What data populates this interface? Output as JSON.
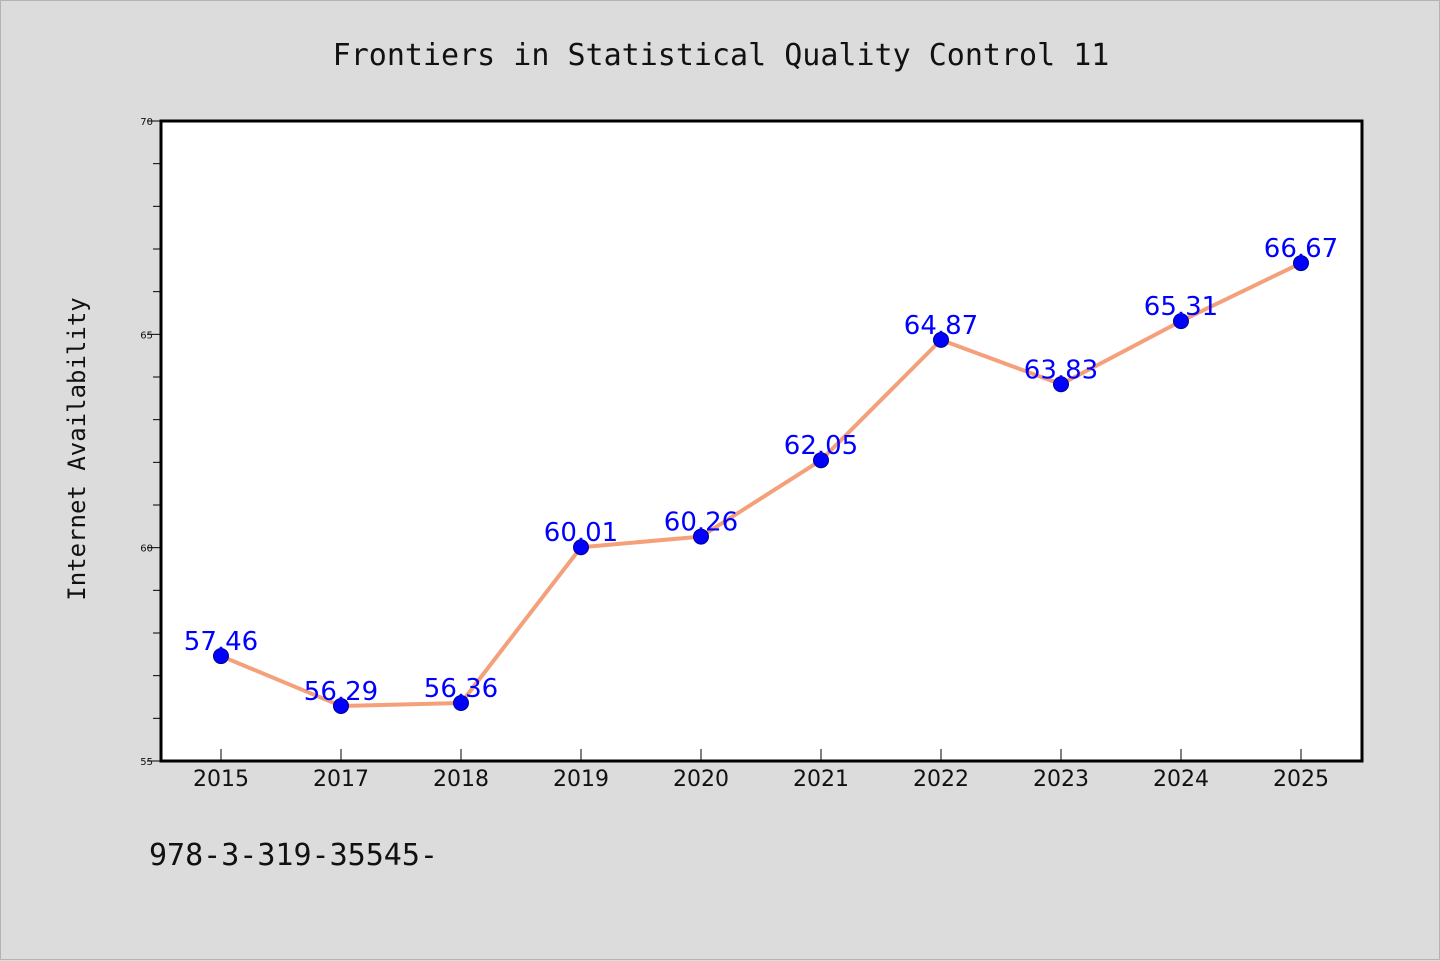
{
  "chart_data": {
    "type": "line",
    "title": "Frontiers in Statistical Quality Control 11",
    "xlabel": "",
    "ylabel": "Internet Availability",
    "categories": [
      "2015",
      "2017",
      "2018",
      "2019",
      "2020",
      "2021",
      "2022",
      "2023",
      "2024",
      "2025"
    ],
    "series": [
      {
        "values": [
          57.46,
          56.29,
          56.36,
          60.01,
          60.26,
          62.05,
          64.87,
          63.83,
          65.31,
          66.67
        ],
        "labels": [
          "57.46",
          "56.29",
          "56.36",
          "60.01",
          "60.26",
          "62.05",
          "64.87",
          "63.83",
          "65.31",
          "66.67"
        ],
        "line_color": "#f4a07a",
        "marker_color": "#0000ff"
      }
    ],
    "ylim": [
      55,
      70
    ],
    "yticks": [
      "55",
      "60",
      "65",
      "70"
    ],
    "grid": false,
    "legend": "none"
  },
  "footer": {
    "isbn": "978-3-319-35545-"
  },
  "colors": {
    "background": "#dcdcdc",
    "plot_background": "#ffffff",
    "data_label": "#0000ff"
  }
}
